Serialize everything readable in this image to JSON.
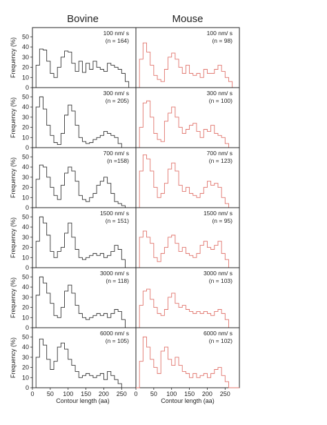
{
  "figure": {
    "columns": [
      "Bovine",
      "Mouse"
    ],
    "y_label": "Frequency (%)",
    "x_label": "Contour length (aa)",
    "colors": {
      "Bovine": "#333333",
      "Mouse": "#e0726a"
    }
  },
  "chart_data": [
    {
      "type": "area",
      "column": "Bovine",
      "speed": "100 nm/ s",
      "n": "(n = 164)",
      "xlim": [
        0,
        290
      ],
      "ylim": [
        0,
        55
      ],
      "x": [
        0,
        10,
        20,
        30,
        40,
        50,
        60,
        70,
        80,
        90,
        100,
        110,
        120,
        130,
        140,
        150,
        160,
        170,
        180,
        190,
        200,
        210,
        220,
        230,
        240,
        250,
        260,
        270,
        280,
        290
      ],
      "series": [
        {
          "values": [
            0,
            22,
            38,
            37,
            26,
            14,
            10,
            20,
            30,
            36,
            35,
            24,
            16,
            26,
            15,
            24,
            18,
            26,
            20,
            18,
            16,
            24,
            22,
            20,
            18,
            14,
            6,
            0,
            0,
            0
          ]
        }
      ]
    },
    {
      "type": "area",
      "column": "Mouse",
      "speed": "100 nm/ s",
      "n": "(n = 98)",
      "xlim": [
        0,
        290
      ],
      "ylim": [
        0,
        55
      ],
      "x": [
        0,
        10,
        20,
        30,
        40,
        50,
        60,
        70,
        80,
        90,
        100,
        110,
        120,
        130,
        140,
        150,
        160,
        170,
        180,
        190,
        200,
        210,
        220,
        230,
        240,
        250,
        260,
        270,
        280,
        290
      ],
      "series": [
        {
          "values": [
            0,
            28,
            44,
            35,
            22,
            12,
            8,
            6,
            18,
            30,
            34,
            28,
            20,
            14,
            22,
            14,
            12,
            14,
            10,
            18,
            14,
            14,
            18,
            22,
            16,
            10,
            6,
            0,
            0,
            0
          ]
        }
      ]
    },
    {
      "type": "area",
      "column": "Bovine",
      "speed": "300 nm/ s",
      "n": "(n = 205)",
      "xlim": [
        0,
        290
      ],
      "ylim": [
        0,
        55
      ],
      "x": [
        0,
        10,
        20,
        30,
        40,
        50,
        60,
        70,
        80,
        90,
        100,
        110,
        120,
        130,
        140,
        150,
        160,
        170,
        180,
        190,
        200,
        210,
        220,
        230,
        240,
        250,
        260,
        270,
        280,
        290
      ],
      "series": [
        {
          "values": [
            0,
            40,
            50,
            38,
            22,
            12,
            5,
            3,
            14,
            32,
            42,
            36,
            22,
            10,
            6,
            4,
            5,
            8,
            10,
            12,
            16,
            14,
            12,
            10,
            4,
            0,
            0,
            0,
            0,
            0
          ]
        }
      ]
    },
    {
      "type": "area",
      "column": "Mouse",
      "speed": "300 nm/ s",
      "n": "(n = 100)",
      "xlim": [
        0,
        290
      ],
      "ylim": [
        0,
        55
      ],
      "x": [
        0,
        10,
        20,
        30,
        40,
        50,
        60,
        70,
        80,
        90,
        100,
        110,
        120,
        130,
        140,
        150,
        160,
        170,
        180,
        190,
        200,
        210,
        220,
        230,
        240,
        250,
        260,
        270,
        280,
        290
      ],
      "series": [
        {
          "values": [
            0,
            20,
            44,
            46,
            30,
            14,
            8,
            6,
            26,
            34,
            40,
            30,
            20,
            14,
            18,
            22,
            24,
            16,
            10,
            18,
            16,
            22,
            14,
            12,
            10,
            4,
            0,
            0,
            0,
            0
          ]
        }
      ]
    },
    {
      "type": "area",
      "column": "Bovine",
      "speed": "700 nm/ s",
      "n": "(n =158)",
      "xlim": [
        0,
        290
      ],
      "ylim": [
        0,
        55
      ],
      "x": [
        0,
        10,
        20,
        30,
        40,
        50,
        60,
        70,
        80,
        90,
        100,
        110,
        120,
        130,
        140,
        150,
        160,
        170,
        180,
        190,
        200,
        210,
        220,
        230,
        240,
        250,
        260,
        270,
        280,
        290
      ],
      "series": [
        {
          "values": [
            0,
            28,
            42,
            40,
            30,
            20,
            12,
            8,
            22,
            34,
            40,
            36,
            26,
            12,
            8,
            6,
            10,
            14,
            22,
            26,
            30,
            24,
            14,
            6,
            4,
            2,
            0,
            0,
            0,
            0
          ]
        }
      ]
    },
    {
      "type": "area",
      "column": "Mouse",
      "speed": "700 nm/ s",
      "n": "(n = 123)",
      "xlim": [
        0,
        290
      ],
      "ylim": [
        0,
        55
      ],
      "x": [
        0,
        10,
        20,
        30,
        40,
        50,
        60,
        70,
        80,
        90,
        100,
        110,
        120,
        130,
        140,
        150,
        160,
        170,
        180,
        190,
        200,
        210,
        220,
        230,
        240,
        250,
        260,
        270,
        280,
        290
      ],
      "series": [
        {
          "values": [
            0,
            36,
            52,
            48,
            36,
            20,
            10,
            14,
            24,
            38,
            44,
            36,
            22,
            16,
            20,
            14,
            12,
            10,
            14,
            20,
            26,
            22,
            24,
            20,
            10,
            4,
            0,
            0,
            0,
            0
          ]
        }
      ]
    },
    {
      "type": "area",
      "column": "Bovine",
      "speed": "1500 nm/ s",
      "n": "(n = 151)",
      "xlim": [
        0,
        290
      ],
      "ylim": [
        0,
        55
      ],
      "x": [
        0,
        10,
        20,
        30,
        40,
        50,
        60,
        70,
        80,
        90,
        100,
        110,
        120,
        130,
        140,
        150,
        160,
        170,
        180,
        190,
        200,
        210,
        220,
        230,
        240,
        250,
        260,
        270,
        280,
        290
      ],
      "series": [
        {
          "values": [
            0,
            26,
            50,
            44,
            32,
            16,
            10,
            16,
            20,
            34,
            44,
            30,
            18,
            10,
            8,
            10,
            12,
            14,
            12,
            14,
            10,
            12,
            16,
            22,
            18,
            8,
            0,
            0,
            0,
            0
          ]
        }
      ]
    },
    {
      "type": "area",
      "column": "Mouse",
      "speed": "1500 nm/ s",
      "n": "(n = 95)",
      "xlim": [
        0,
        290
      ],
      "ylim": [
        0,
        55
      ],
      "x": [
        0,
        10,
        20,
        30,
        40,
        50,
        60,
        70,
        80,
        90,
        100,
        110,
        120,
        130,
        140,
        150,
        160,
        170,
        180,
        190,
        200,
        210,
        220,
        230,
        240,
        250,
        260,
        270,
        280,
        290
      ],
      "series": [
        {
          "values": [
            0,
            30,
            36,
            30,
            24,
            10,
            6,
            14,
            20,
            30,
            32,
            24,
            16,
            20,
            14,
            12,
            10,
            14,
            22,
            26,
            20,
            18,
            22,
            26,
            14,
            8,
            0,
            0,
            0,
            0
          ]
        }
      ]
    },
    {
      "type": "area",
      "column": "Bovine",
      "speed": "3000 nm/ s",
      "n": "(n = 118)",
      "xlim": [
        0,
        290
      ],
      "ylim": [
        0,
        55
      ],
      "x": [
        0,
        10,
        20,
        30,
        40,
        50,
        60,
        70,
        80,
        90,
        100,
        110,
        120,
        130,
        140,
        150,
        160,
        170,
        180,
        190,
        200,
        210,
        220,
        230,
        240,
        250,
        260,
        270,
        280,
        290
      ],
      "series": [
        {
          "values": [
            0,
            32,
            50,
            44,
            34,
            24,
            12,
            10,
            20,
            36,
            42,
            34,
            22,
            14,
            10,
            8,
            10,
            12,
            14,
            12,
            14,
            10,
            14,
            18,
            16,
            8,
            0,
            0,
            0,
            0
          ]
        }
      ]
    },
    {
      "type": "area",
      "column": "Mouse",
      "speed": "3000 nm/ s",
      "n": "(n = 103)",
      "xlim": [
        0,
        290
      ],
      "ylim": [
        0,
        55
      ],
      "x": [
        0,
        10,
        20,
        30,
        40,
        50,
        60,
        70,
        80,
        90,
        100,
        110,
        120,
        130,
        140,
        150,
        160,
        170,
        180,
        190,
        200,
        210,
        220,
        230,
        240,
        250,
        260,
        270,
        280,
        290
      ],
      "series": [
        {
          "values": [
            0,
            22,
            36,
            38,
            28,
            20,
            14,
            12,
            18,
            30,
            34,
            24,
            20,
            22,
            18,
            16,
            14,
            16,
            14,
            16,
            14,
            12,
            16,
            18,
            14,
            8,
            0,
            0,
            0,
            0
          ]
        }
      ]
    },
    {
      "type": "area",
      "column": "Bovine",
      "speed": "6000 nm/ s",
      "n": "(n = 105)",
      "xlim": [
        0,
        290
      ],
      "ylim": [
        0,
        55
      ],
      "x": [
        0,
        10,
        20,
        30,
        40,
        50,
        60,
        70,
        80,
        90,
        100,
        110,
        120,
        130,
        140,
        150,
        160,
        170,
        180,
        190,
        200,
        210,
        220,
        230,
        240,
        250,
        260,
        270,
        280,
        290
      ],
      "series": [
        {
          "values": [
            0,
            30,
            48,
            42,
            28,
            18,
            26,
            40,
            44,
            38,
            28,
            22,
            16,
            10,
            12,
            14,
            12,
            10,
            12,
            14,
            8,
            16,
            12,
            8,
            4,
            0,
            0,
            0,
            0,
            0
          ]
        }
      ]
    },
    {
      "type": "area",
      "column": "Mouse",
      "speed": "6000 nm/ s",
      "n": "(n = 102)",
      "xlim": [
        0,
        290
      ],
      "ylim": [
        0,
        55
      ],
      "x": [
        0,
        10,
        20,
        30,
        40,
        50,
        60,
        70,
        80,
        90,
        100,
        110,
        120,
        130,
        140,
        150,
        160,
        170,
        180,
        190,
        200,
        210,
        220,
        230,
        240,
        250,
        260,
        270,
        280,
        290
      ],
      "series": [
        {
          "values": [
            0,
            26,
            50,
            40,
            28,
            20,
            14,
            36,
            40,
            28,
            22,
            30,
            22,
            16,
            14,
            10,
            14,
            10,
            12,
            14,
            10,
            14,
            18,
            20,
            12,
            6,
            0,
            0,
            0,
            0
          ]
        }
      ]
    }
  ],
  "x_ticks": [
    0,
    50,
    100,
    150,
    200,
    250
  ],
  "y_ticks": [
    0,
    10,
    20,
    30,
    40,
    50
  ]
}
